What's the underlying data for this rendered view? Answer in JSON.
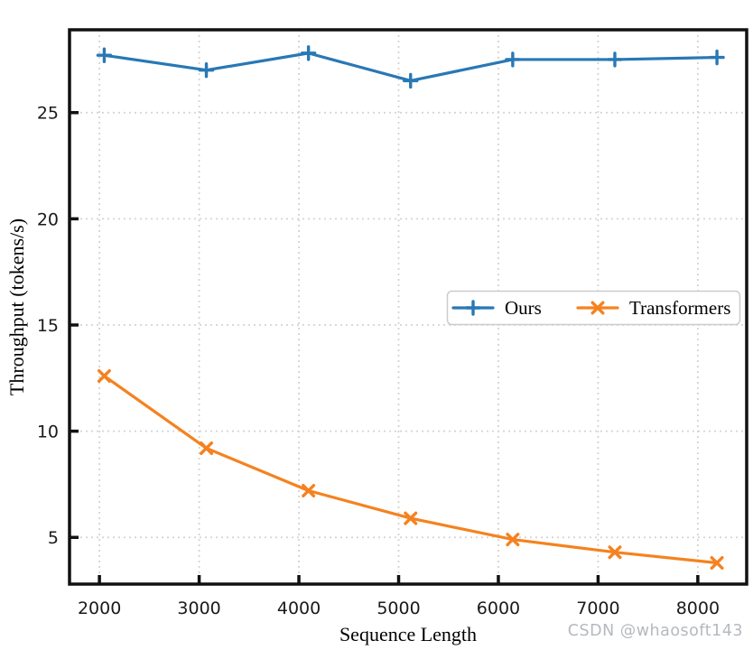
{
  "watermark": {
    "text": "CSDN @whaosoft143",
    "color": "#b5b9be"
  },
  "style": {
    "spine_color": "#111111",
    "grid_color": "#d4d4d4",
    "tick_label_color": "#1a1a1a",
    "background": "#ffffff",
    "legend_border": "#cccccc"
  },
  "chart_data": {
    "type": "line",
    "title": "",
    "xlabel": "Sequence Length",
    "ylabel": "Throughput (tokens/s)",
    "x": [
      2048,
      3072,
      4096,
      5120,
      6144,
      7168,
      8192
    ],
    "series": [
      {
        "name": "Ours",
        "color": "#2878b5",
        "marker": "plus",
        "values": [
          27.7,
          27.0,
          27.8,
          26.5,
          27.5,
          27.5,
          27.6
        ]
      },
      {
        "name": "Transformers",
        "color": "#f5821f",
        "marker": "x",
        "values": [
          12.6,
          9.2,
          7.2,
          5.9,
          4.9,
          4.3,
          3.8
        ]
      }
    ],
    "x_ticks": [
      2000,
      3000,
      4000,
      5000,
      6000,
      7000,
      8000
    ],
    "x_tick_labels": [
      "2000",
      "3000",
      "4000",
      "5000",
      "6000",
      "7000",
      "8000"
    ],
    "y_ticks": [
      5,
      10,
      15,
      20,
      25
    ],
    "y_tick_labels": [
      "5",
      "10",
      "15",
      "20",
      "25"
    ],
    "xlim": [
      1700,
      8490
    ],
    "ylim": [
      2.8,
      28.9
    ],
    "grid": true,
    "legend_position": "center-right"
  }
}
